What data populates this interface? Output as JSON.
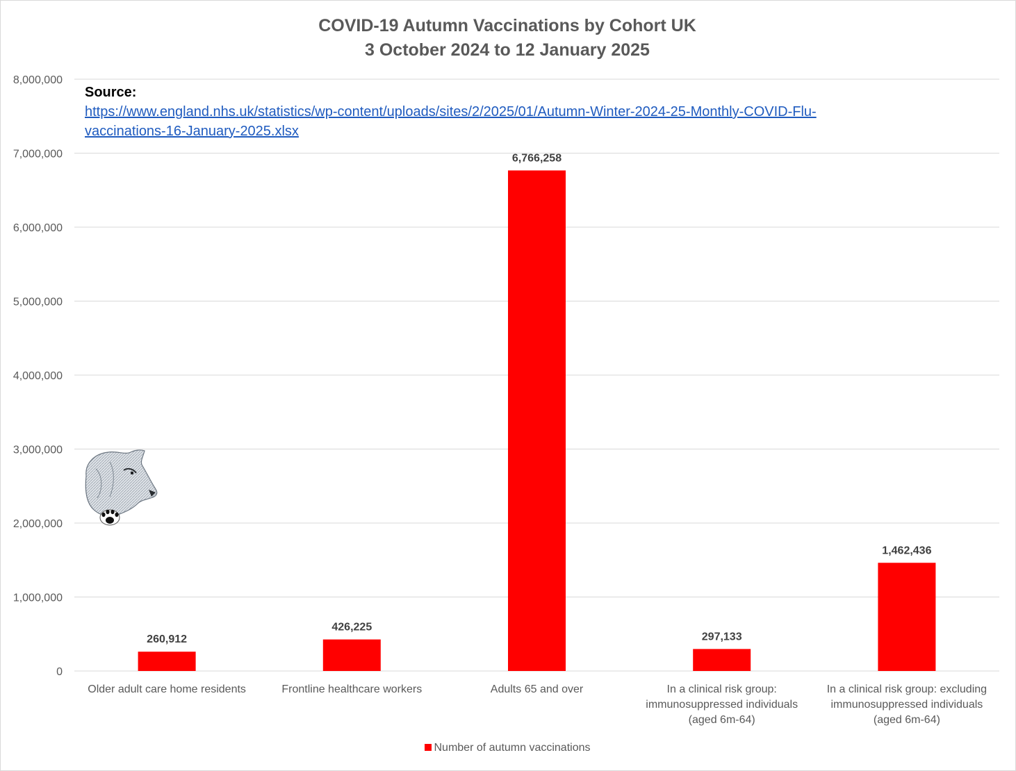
{
  "chart_data": {
    "type": "bar",
    "title": "COVID-19 Autumn Vaccinations by Cohort UK",
    "subtitle": "3 October 2024 to 12 January 2025",
    "categories": [
      [
        "Older adult care home residents"
      ],
      [
        "Frontline healthcare workers"
      ],
      [
        "Adults 65 and over"
      ],
      [
        "In a clinical risk group:",
        "immunosuppressed individuals",
        "(aged 6m-64)"
      ],
      [
        "In a clinical risk group: excluding",
        "immunosuppressed individuals",
        "(aged 6m-64)"
      ]
    ],
    "series": [
      {
        "name": "Number of autumn vaccinations",
        "values": [
          260912,
          426225,
          6766258,
          297133,
          1462436
        ],
        "data_labels": [
          "260,912",
          "426,225",
          "6,766,258",
          "297,133",
          "1,462,436"
        ],
        "color": "#ff0000"
      }
    ],
    "ylim": [
      0,
      8000000
    ],
    "yticks": [
      0,
      1000000,
      2000000,
      3000000,
      4000000,
      5000000,
      6000000,
      7000000,
      8000000
    ],
    "ytick_labels": [
      "0",
      "1,000,000",
      "2,000,000",
      "3,000,000",
      "4,000,000",
      "5,000,000",
      "6,000,000",
      "7,000,000",
      "8,000,000"
    ],
    "grid": true,
    "legend": "bottom",
    "source_label": "Source:",
    "source_url_line1": "https://www.england.nhs.uk/statistics/wp-content/uploads/sites/2/2025/01/Autumn-Winter-2024-25-Monthly-COVID-Flu-",
    "source_url_line2": "vaccinations-16-January-2025.xlsx"
  },
  "colors": {
    "bar": "#ff0000",
    "grid": "#d9d9d9",
    "text": "#595959",
    "link": "#1f5bbf"
  },
  "icons": {
    "logo": "wolf-head-with-paw-print"
  }
}
